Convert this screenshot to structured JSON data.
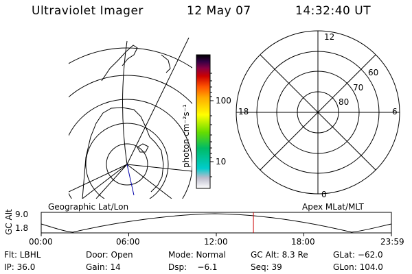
{
  "header": {
    "title": "Ultraviolet Imager",
    "date": "12 May 07",
    "time": "14:32:40 UT"
  },
  "colorbar": {
    "label": "photon cm⁻²s⁻¹",
    "ticks": [
      "100",
      "10"
    ]
  },
  "polar": {
    "mlt_labels": {
      "top": "12",
      "left": "18",
      "right": "6",
      "bottom": "0"
    },
    "lat_labels": [
      "60",
      "70",
      "80"
    ]
  },
  "timeline": {
    "left_label": "Geographic Lat/Lon",
    "right_label": "Apex MLat/MLT",
    "y_axis_label": "GC Alt",
    "y_ticks": [
      "9.0",
      "1.8"
    ],
    "x_ticks": [
      "00:00",
      "06:00",
      "12:00",
      "18:00",
      "23:59"
    ],
    "current_time_fraction": 0.606
  },
  "info": {
    "row1": {
      "flt": "Flt: LBHL",
      "door": "Door: Open",
      "mode": "Mode: Normal",
      "gc_alt": "GC Alt: 8.3 Re",
      "glat": "GLat: −62.0"
    },
    "row2": {
      "ip": "IP: 36.0",
      "gain": "Gain: 14",
      "dsp": "Dsp:    −6.1",
      "seq": "Seq: 39",
      "glon": "GLon: 104.0"
    }
  },
  "colors": {
    "colorbar_stops": [
      "#ffffff",
      "#bbbbcc",
      "#00cccc",
      "#00bb66",
      "#66dd00",
      "#ffff00",
      "#ffaa00",
      "#ff5500",
      "#cc0000",
      "#880044",
      "#330044",
      "#000000"
    ],
    "time_marker": "#cc0000",
    "meridian": "#0000aa"
  }
}
